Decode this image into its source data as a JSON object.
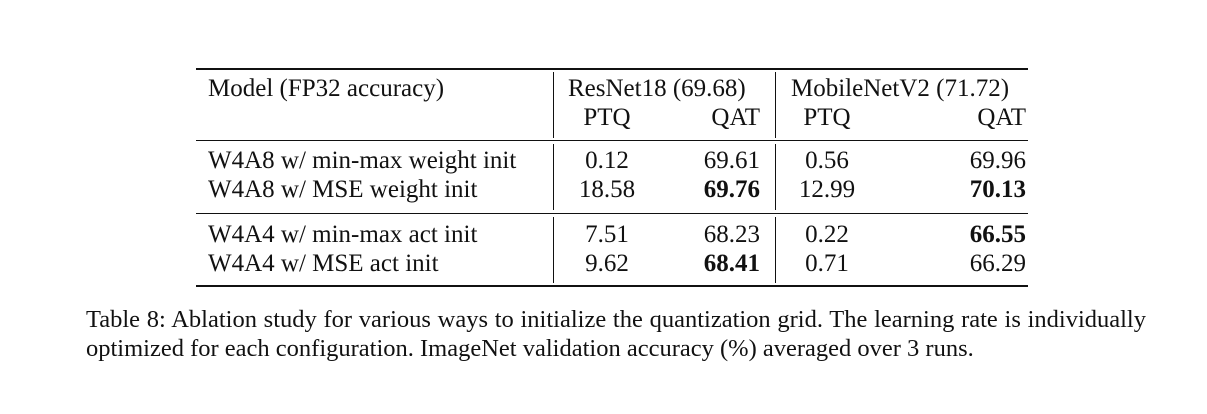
{
  "table": {
    "header": {
      "model_col": "Model (FP32 accuracy)",
      "resnet_group": "ResNet18 (69.68)",
      "mobilenet_group": "MobileNetV2 (71.72)",
      "sub_ptq": "PTQ",
      "sub_qat": "QAT"
    },
    "rows": [
      {
        "label": "W4A8 w/ min-max weight init",
        "r_ptq": "0.12",
        "r_qat": "69.61",
        "m_ptq": "0.56",
        "m_qat": "69.96"
      },
      {
        "label": "W4A8 w/ MSE weight init",
        "r_ptq": "18.58",
        "r_qat": "69.76",
        "m_ptq": "12.99",
        "m_qat": "70.13"
      },
      {
        "label": "W4A4 w/ min-max act init",
        "r_ptq": "7.51",
        "r_qat": "68.23",
        "m_ptq": "0.22",
        "m_qat": "66.55"
      },
      {
        "label": "W4A4 w/ MSE act init",
        "r_ptq": "9.62",
        "r_qat": "68.41",
        "m_ptq": "0.71",
        "m_qat": "66.29"
      }
    ]
  },
  "caption": "Table 8: Ablation study for various ways to initialize the quantization grid. The learning rate is individually optimized for each configuration. ImageNet validation accuracy (%) averaged over 3 runs."
}
